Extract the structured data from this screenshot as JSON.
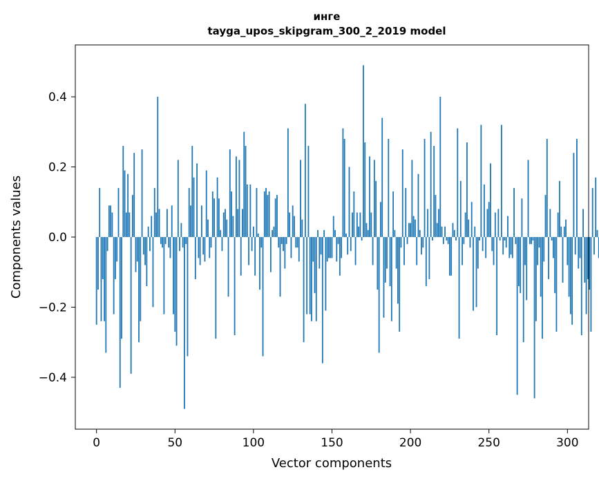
{
  "chart_data": {
    "type": "bar",
    "title": "инге",
    "subtitle": "tayga_upos_skipgram_300_2_2019 model",
    "xlabel": "Vector components",
    "ylabel": "Components values",
    "xlim": [
      -13.5,
      313.5
    ],
    "ylim": [
      -0.548,
      0.548
    ],
    "xticks": [
      0,
      50,
      100,
      150,
      200,
      250,
      300
    ],
    "xtick_labels": [
      "0",
      "50",
      "100",
      "150",
      "200",
      "250",
      "300"
    ],
    "yticks": [
      -0.4,
      -0.2,
      0.0,
      0.2,
      0.4
    ],
    "ytick_labels": [
      "−0.4",
      "−0.2",
      "0.0",
      "0.2",
      "0.4"
    ],
    "grid": false,
    "bar_color": "#1f77b4",
    "values": [
      -0.25,
      -0.15,
      0.14,
      -0.24,
      -0.12,
      -0.24,
      -0.33,
      -0.04,
      0.09,
      0.09,
      0.07,
      -0.22,
      -0.12,
      -0.07,
      0.14,
      -0.43,
      -0.29,
      0.26,
      0.19,
      0.07,
      0.18,
      0.07,
      -0.39,
      0.12,
      0.24,
      -0.1,
      -0.07,
      -0.3,
      -0.24,
      0.25,
      -0.05,
      -0.08,
      -0.14,
      0.03,
      -0.04,
      0.06,
      -0.2,
      0.14,
      0.07,
      0.4,
      0.08,
      -0.02,
      -0.03,
      -0.22,
      -0.02,
      0.08,
      -0.03,
      -0.06,
      0.09,
      -0.22,
      -0.27,
      -0.31,
      0.22,
      -0.04,
      0.04,
      -0.03,
      -0.49,
      -0.02,
      -0.34,
      0.14,
      0.09,
      0.26,
      0.17,
      -0.12,
      0.21,
      -0.06,
      -0.08,
      0.09,
      -0.05,
      -0.07,
      0.19,
      0.05,
      -0.06,
      -0.03,
      0.13,
      0.11,
      -0.29,
      0.17,
      0.11,
      0.02,
      -0.04,
      0.07,
      0.08,
      0.05,
      -0.17,
      0.25,
      0.13,
      0.06,
      -0.28,
      0.23,
      0.08,
      0.22,
      -0.11,
      0.08,
      0.3,
      0.26,
      0.15,
      -0.08,
      0.15,
      -0.04,
      0.03,
      -0.11,
      0.14,
      0.01,
      -0.15,
      -0.03,
      -0.34,
      0.13,
      0.14,
      0.12,
      0.13,
      -0.1,
      0.02,
      0.03,
      0.11,
      0.12,
      -0.03,
      -0.17,
      -0.02,
      -0.04,
      -0.09,
      -0.02,
      0.31,
      0.07,
      -0.06,
      0.09,
      0.06,
      -0.03,
      -0.03,
      -0.07,
      0.22,
      0.05,
      -0.3,
      0.38,
      -0.22,
      0.26,
      -0.22,
      -0.24,
      -0.07,
      -0.16,
      -0.24,
      0.02,
      -0.09,
      -0.05,
      -0.36,
      0.02,
      -0.21,
      -0.07,
      -0.06,
      -0.06,
      -0.06,
      0.06,
      0.02,
      -0.07,
      -0.02,
      -0.11,
      -0.06,
      0.31,
      0.28,
      0.01,
      -0.05,
      0.2,
      -0.04,
      0.07,
      0.13,
      -0.08,
      0.07,
      0.03,
      0.07,
      -0.01,
      0.49,
      0.27,
      0.04,
      0.02,
      0.23,
      0.07,
      -0.08,
      0.22,
      0.16,
      -0.15,
      -0.33,
      0.1,
      0.34,
      -0.23,
      -0.13,
      -0.09,
      0.28,
      -0.14,
      -0.24,
      0.13,
      0.02,
      -0.09,
      -0.19,
      -0.27,
      -0.03,
      0.25,
      -0.08,
      0.14,
      -0.02,
      0.04,
      0.04,
      0.22,
      0.06,
      0.05,
      -0.08,
      0.18,
      0.02,
      -0.05,
      -0.03,
      0.28,
      -0.14,
      0.08,
      -0.12,
      0.3,
      -0.01,
      0.26,
      0.12,
      0.04,
      0.08,
      0.4,
      0.03,
      -0.02,
      0.03,
      -0.01,
      -0.02,
      -0.11,
      -0.11,
      0.04,
      0.02,
      -0.01,
      0.31,
      -0.29,
      0.16,
      -0.08,
      -0.02,
      0.07,
      0.27,
      0.05,
      -0.03,
      0.1,
      -0.21,
      0.03,
      -0.2,
      -0.09,
      -0.01,
      0.32,
      -0.04,
      0.15,
      -0.06,
      0.08,
      0.1,
      0.21,
      -0.04,
      -0.08,
      0.07,
      -0.28,
      0.08,
      -0.01,
      0.32,
      -0.05,
      -0.01,
      -0.03,
      0.06,
      -0.06,
      -0.05,
      -0.06,
      0.14,
      -0.02,
      -0.45,
      -0.14,
      -0.16,
      0.11,
      -0.3,
      -0.08,
      -0.18,
      0.22,
      -0.02,
      -0.02,
      -0.01,
      -0.46,
      -0.24,
      -0.08,
      -0.03,
      -0.17,
      -0.29,
      -0.07,
      0.12,
      0.28,
      -0.12,
      0.08,
      -0.01,
      -0.06,
      -0.16,
      -0.27,
      0.07,
      0.16,
      0.03,
      -0.13,
      0.03,
      0.05,
      -0.08,
      -0.17,
      -0.22,
      -0.25,
      0.24,
      -0.05,
      0.28,
      -0.09,
      -0.06,
      -0.28,
      0.08,
      -0.13,
      -0.22,
      -0.12,
      -0.15,
      -0.27,
      0.14,
      -0.05,
      0.17,
      0.02,
      -0.06
    ]
  }
}
